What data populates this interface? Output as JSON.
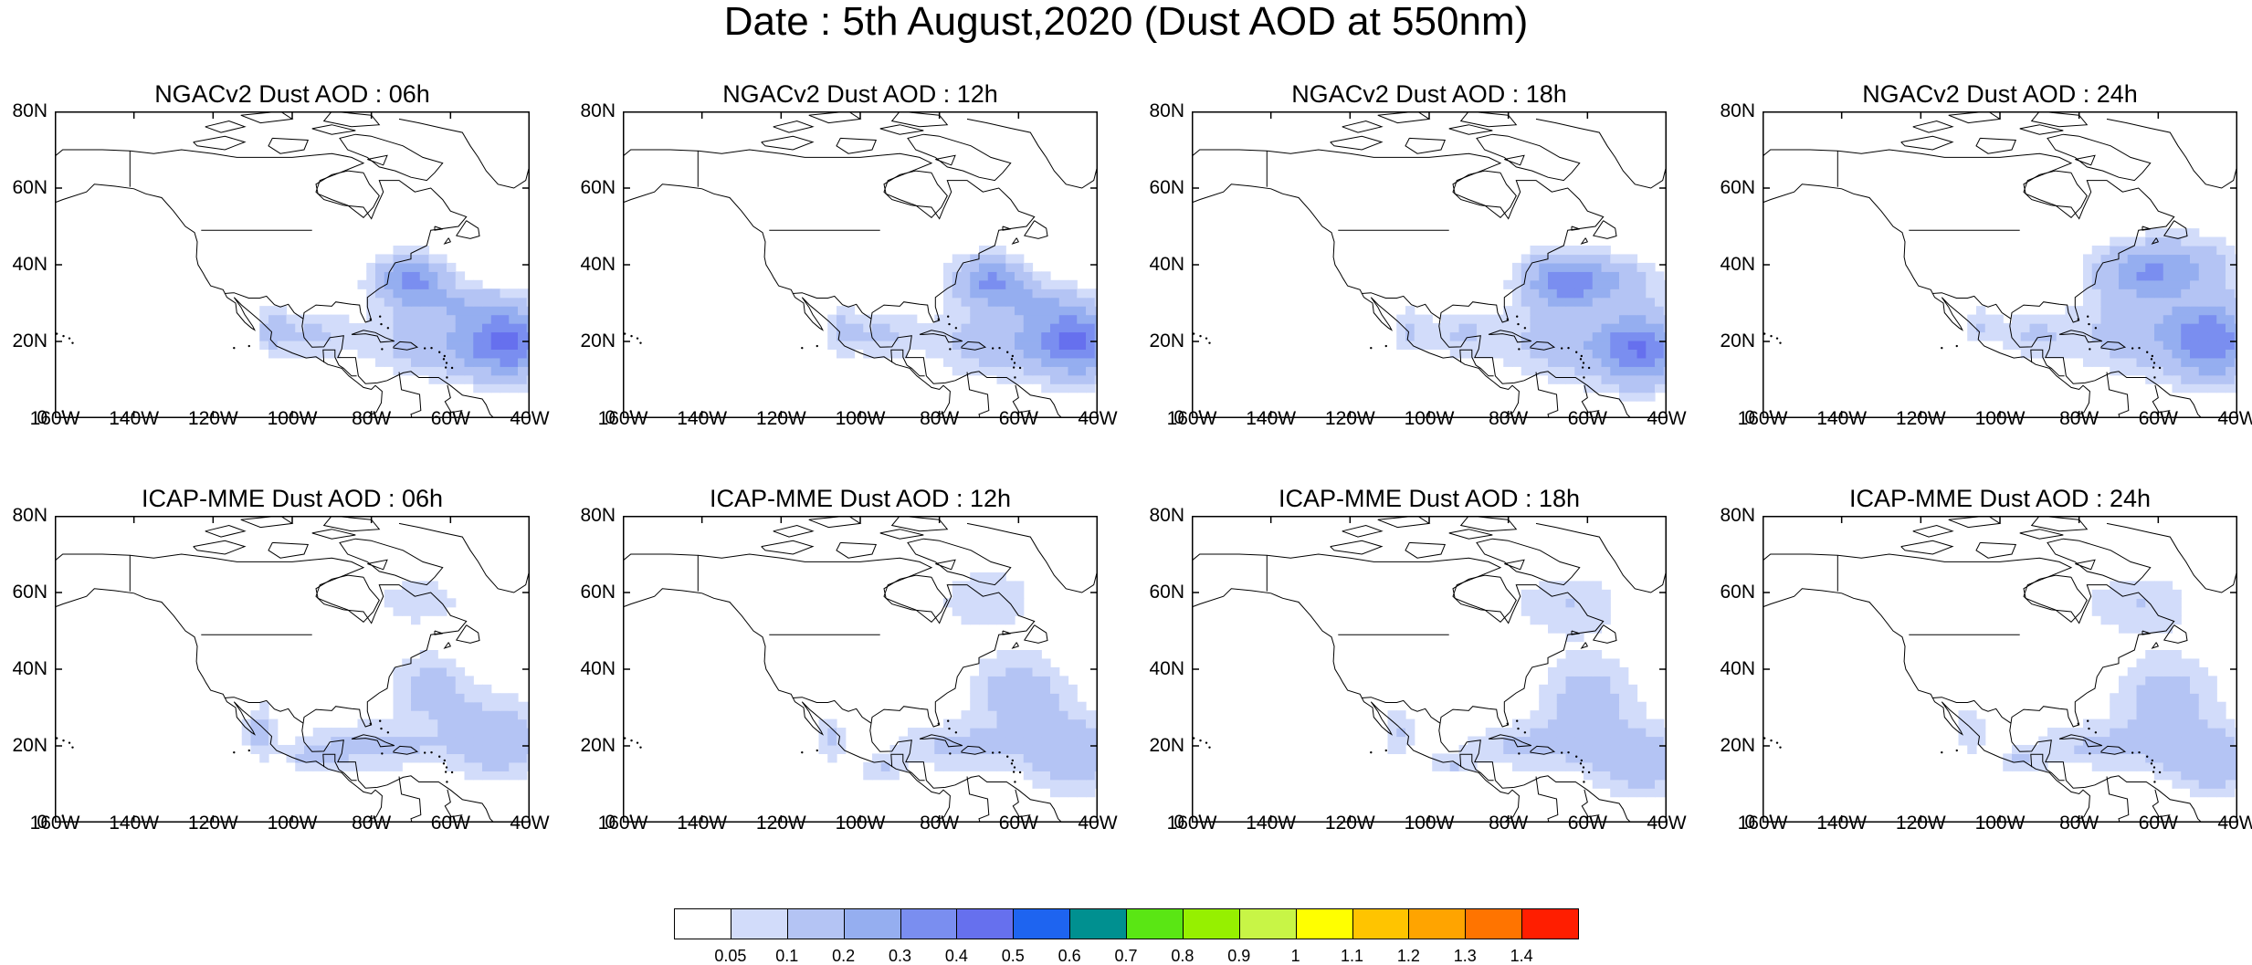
{
  "title": "Date : 5th August,2020 (Dust AOD at 550nm)",
  "axes": {
    "lat_labels": [
      "80N",
      "60N",
      "40N",
      "20N",
      "0"
    ],
    "lon_labels": [
      "160W",
      "140W",
      "120W",
      "100W",
      "80W",
      "60W",
      "40W"
    ]
  },
  "panels": [
    {
      "title": "NGACv2 Dust AOD : 06h",
      "model": "NGACv2",
      "hour": "06h"
    },
    {
      "title": "NGACv2 Dust AOD : 12h",
      "model": "NGACv2",
      "hour": "12h"
    },
    {
      "title": "NGACv2 Dust AOD : 18h",
      "model": "NGACv2",
      "hour": "18h"
    },
    {
      "title": "NGACv2 Dust AOD : 24h",
      "model": "NGACv2",
      "hour": "24h"
    },
    {
      "title": "ICAP-MME Dust AOD : 06h",
      "model": "ICAP-MME",
      "hour": "06h"
    },
    {
      "title": "ICAP-MME Dust AOD : 12h",
      "model": "ICAP-MME",
      "hour": "12h"
    },
    {
      "title": "ICAP-MME Dust AOD : 18h",
      "model": "ICAP-MME",
      "hour": "18h"
    },
    {
      "title": "ICAP-MME Dust AOD : 24h",
      "model": "ICAP-MME",
      "hour": "24h"
    }
  ],
  "colorbar": {
    "labels": [
      "0.05",
      "0.1",
      "0.2",
      "0.3",
      "0.4",
      "0.5",
      "0.6",
      "0.7",
      "0.8",
      "0.9",
      "1",
      "1.1",
      "1.2",
      "1.3",
      "1.4"
    ],
    "colors": [
      "#ffffff",
      "#d2dcfa",
      "#b4c4f4",
      "#95aef0",
      "#7a8ef0",
      "#6670ee",
      "#1e64f0",
      "#009090",
      "#5ae614",
      "#96f000",
      "#c8f546",
      "#ffff00",
      "#ffc400",
      "#ffa400",
      "#ff7400",
      "#ff1e00"
    ]
  }
}
